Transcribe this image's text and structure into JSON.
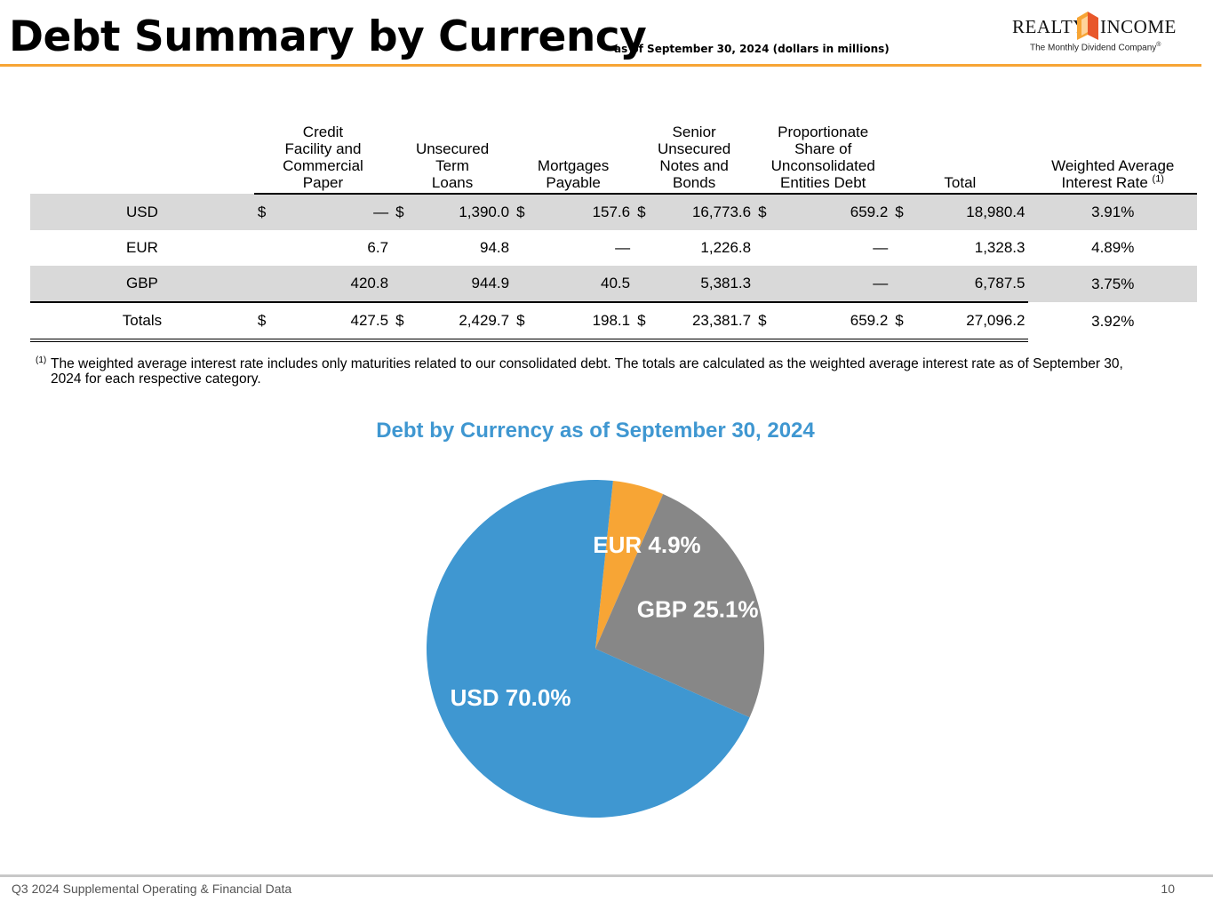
{
  "page": {
    "title": "Debt Summary by Currency",
    "subtitle": "as of September 30, 2024 (dollars in millions)",
    "logo": {
      "left": "REALTY",
      "right": "INCOME",
      "tagline": "The Monthly Dividend Company",
      "registered": "®"
    },
    "footer": {
      "left": "Q3 2024 Supplemental Operating & Financial Data",
      "page_number": "10"
    }
  },
  "table": {
    "columns": [
      "Credit Facility and Commercial Paper",
      "Unsecured Term Loans",
      "Mortgages Payable",
      "Senior Unsecured Notes and Bonds",
      "Proportionate Share of Unconsolidated Entities Debt",
      "Total",
      "Weighted Average Interest Rate"
    ],
    "header_lines": {
      "credit": [
        "Credit",
        "Facility and",
        "Commercial",
        "Paper"
      ],
      "term": [
        "Unsecured",
        "Term",
        "Loans"
      ],
      "mort": [
        "Mortgages",
        "Payable"
      ],
      "notes": [
        "Senior",
        "Unsecured",
        "Notes and",
        "Bonds"
      ],
      "prop": [
        "Proportionate",
        "Share of",
        "Unconsolidated",
        "Entities Debt"
      ],
      "total": [
        "Total"
      ],
      "rate": [
        "Weighted Average",
        "Interest Rate"
      ]
    },
    "rate_footnote_mark": "(1)",
    "dollar_sign": "$",
    "rows": [
      {
        "label": "USD",
        "credit": "—",
        "term": "1,390.0",
        "mort": "157.6",
        "notes": "16,773.6",
        "prop": "659.2",
        "total": "18,980.4",
        "rate": "3.91%"
      },
      {
        "label": "EUR",
        "credit": "6.7",
        "term": "94.8",
        "mort": "—",
        "notes": "1,226.8",
        "prop": "—",
        "total": "1,328.3",
        "rate": "4.89%"
      },
      {
        "label": "GBP",
        "credit": "420.8",
        "term": "944.9",
        "mort": "40.5",
        "notes": "5,381.3",
        "prop": "—",
        "total": "6,787.5",
        "rate": "3.75%"
      },
      {
        "label": "Totals",
        "credit": "427.5",
        "term": "2,429.7",
        "mort": "198.1",
        "notes": "23,381.7",
        "prop": "659.2",
        "total": "27,096.2",
        "rate": "3.92%"
      }
    ],
    "footnote": {
      "mark": "(1)",
      "text": "The weighted average interest rate includes only maturities related to our consolidated debt. The totals are calculated as the weighted average interest rate as of September 30, 2024 for each respective category."
    }
  },
  "colors": {
    "usd": "#3f97d1",
    "eur": "#f7a535",
    "gbp": "#878787",
    "accent_rule": "#f7a535",
    "chart_title": "#3f97d1"
  },
  "chart_data": {
    "type": "pie",
    "title": "Debt by Currency as of September 30, 2024",
    "slices": [
      {
        "label": "EUR",
        "value": 4.9,
        "text": "EUR 4.9%",
        "color": "#f7a535"
      },
      {
        "label": "GBP",
        "value": 25.1,
        "text": "GBP 25.1%",
        "color": "#878787"
      },
      {
        "label": "USD",
        "value": 70.0,
        "text": "USD 70.0%",
        "color": "#3f97d1"
      }
    ],
    "legend": "none",
    "start_angle_deg": 6
  }
}
